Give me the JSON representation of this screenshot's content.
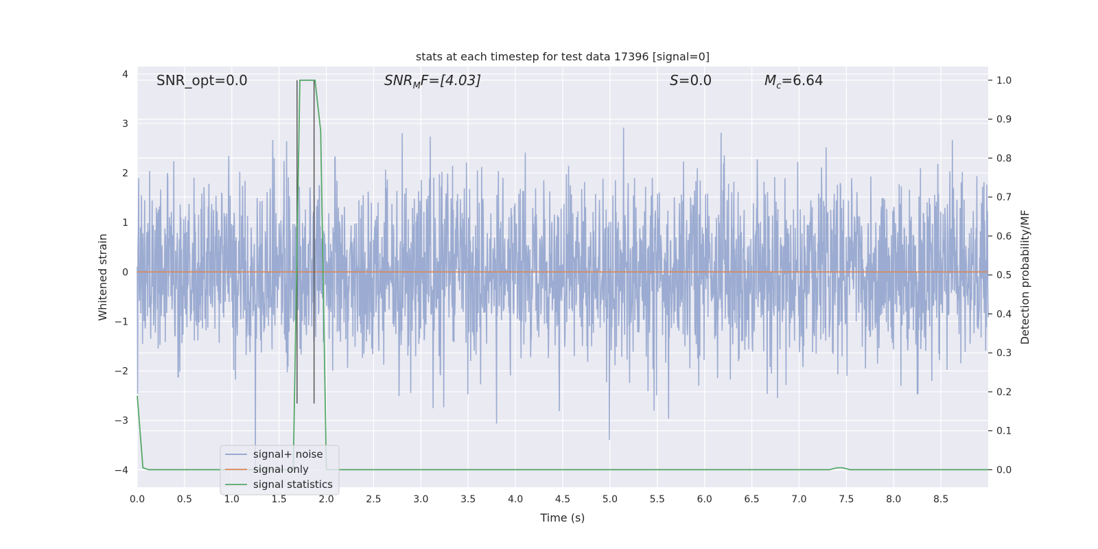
{
  "chart_data": {
    "type": "line",
    "title": "stats at each timestep for test data 17396 [signal=0]",
    "xlabel": "Time (s)",
    "ylabel": "Whitened strain",
    "y2label": "Detection probability/MF",
    "xlim": [
      0.0,
      9.0
    ],
    "ylim": [
      -4.35,
      4.15
    ],
    "y2lim": [
      -0.045,
      1.035
    ],
    "x_ticks": [
      0.0,
      0.5,
      1.0,
      1.5,
      2.0,
      2.5,
      3.0,
      3.5,
      4.0,
      4.5,
      5.0,
      5.5,
      6.0,
      6.5,
      7.0,
      7.5,
      8.0,
      8.5
    ],
    "x_tick_labels": [
      "0.0",
      "0.5",
      "1.0",
      "1.5",
      "2.0",
      "2.5",
      "3.0",
      "3.5",
      "4.0",
      "4.5",
      "5.0",
      "5.5",
      "6.0",
      "6.5",
      "7.0",
      "7.5",
      "8.0",
      "8.5"
    ],
    "y_ticks": [
      -4,
      -3,
      -2,
      -1,
      0,
      1,
      2,
      3,
      4
    ],
    "y_tick_labels": [
      "−4",
      "−3",
      "−2",
      "−1",
      "0",
      "1",
      "2",
      "3",
      "4"
    ],
    "y2_ticks": [
      0.0,
      0.1,
      0.2,
      0.3,
      0.4,
      0.5,
      0.6,
      0.7,
      0.8,
      0.9,
      1.0
    ],
    "y2_tick_labels": [
      "0.0",
      "0.1",
      "0.2",
      "0.3",
      "0.4",
      "0.5",
      "0.6",
      "0.7",
      "0.8",
      "0.9",
      "1.0"
    ],
    "grid": true,
    "legend_position": "lower-left",
    "annotations": {
      "snr_opt": "SNR_opt=0.0",
      "snr_mf_main": "SNR",
      "snr_mf_sub": "M",
      "snr_mf_rest": "F=[4.03]",
      "s_main": "S",
      "s_rest": "=0.0",
      "mc_main": "M",
      "mc_sub": "c",
      "mc_rest": "=6.64"
    },
    "vertical_markers": [
      1.69,
      1.87
    ],
    "series": [
      {
        "name": "signal+ noise",
        "axis": "left",
        "color": "#8da0cb",
        "style": "dense noise, amplitude about ±1.4 typical, peaks to about ±3.8",
        "seed": 17396,
        "sigma": 0.95,
        "n_samples": 2400
      },
      {
        "name": "signal only",
        "axis": "left",
        "color": "#dd8452",
        "x": [
          0.0,
          9.0
        ],
        "y": [
          0.0,
          0.0
        ]
      },
      {
        "name": "signal statistics",
        "axis": "right",
        "color": "#55a868",
        "x": [
          0.0,
          0.06,
          0.12,
          1.65,
          1.72,
          1.8,
          1.88,
          1.94,
          2.0,
          7.32,
          7.4,
          7.46,
          7.54,
          9.0
        ],
        "y": [
          0.19,
          0.005,
          0.0,
          0.0,
          1.0,
          1.0,
          1.0,
          0.87,
          0.0,
          0.0,
          0.005,
          0.005,
          0.0,
          0.0
        ]
      }
    ],
    "legend": [
      "signal+ noise",
      "signal only",
      "signal statistics"
    ]
  }
}
